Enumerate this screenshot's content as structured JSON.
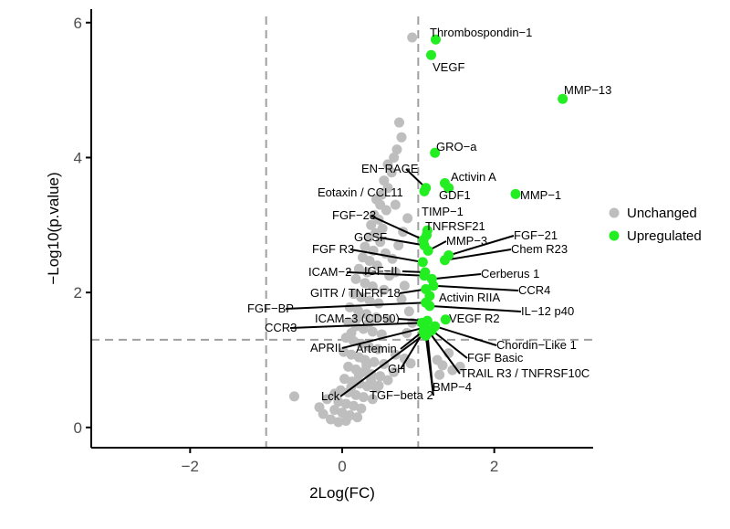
{
  "chart_data": {
    "type": "scatter",
    "xlabel": "2Log(FC)",
    "ylabel": "−Log10(p.value)",
    "xlim": [
      -3.3,
      3.3
    ],
    "ylim": [
      -0.3,
      6.2
    ],
    "x_ticks": [
      -2,
      0,
      2
    ],
    "y_ticks": [
      0,
      2,
      4,
      6
    ],
    "x_tick_labels": [
      "−2",
      "0",
      "2"
    ],
    "y_tick_labels": [
      "0",
      "2",
      "4",
      "6"
    ],
    "fc_thresholds": [
      -1,
      1
    ],
    "p_threshold": 1.3,
    "grid": false,
    "legend_position": "right",
    "legend": [
      {
        "label": "Unchanged",
        "color": "#bebebe"
      },
      {
        "label": "Upregulated",
        "color": "#22ee22"
      }
    ],
    "upregulated": [
      {
        "label": "Thrombospondin−1",
        "x": 1.23,
        "y": 5.75
      },
      {
        "label": "VEGF",
        "x": 1.17,
        "y": 5.52
      },
      {
        "label": "MMP−13",
        "x": 2.9,
        "y": 4.87
      },
      {
        "label": "GRO−a",
        "x": 1.22,
        "y": 4.07
      },
      {
        "label": "Activin A",
        "x": 1.35,
        "y": 3.62
      },
      {
        "label": "GDF1",
        "x": 1.4,
        "y": 3.55
      },
      {
        "label": "MMP−1",
        "x": 2.28,
        "y": 3.46
      },
      {
        "label": "EN−RAGE",
        "x": 1.1,
        "y": 3.55
      },
      {
        "label": "Eotaxin / CCL11",
        "x": 1.08,
        "y": 3.5
      },
      {
        "label": "TIMP−1",
        "x": 1.12,
        "y": 2.92
      },
      {
        "label": "TNFRSF21",
        "x": 1.11,
        "y": 2.85
      },
      {
        "label": "FGF−23",
        "x": 1.07,
        "y": 2.78
      },
      {
        "label": "GCSF",
        "x": 1.08,
        "y": 2.7
      },
      {
        "label": "MMP−3",
        "x": 1.13,
        "y": 2.62
      },
      {
        "label": "FGF−21",
        "x": 1.4,
        "y": 2.55
      },
      {
        "label": "Chem R23",
        "x": 1.35,
        "y": 2.48
      },
      {
        "label": "FGF R3",
        "x": 1.06,
        "y": 2.45
      },
      {
        "label": "IGF−II",
        "x": 1.09,
        "y": 2.3
      },
      {
        "label": "ICAM−2",
        "x": 1.08,
        "y": 2.25
      },
      {
        "label": "Cerberus 1",
        "x": 1.18,
        "y": 2.2
      },
      {
        "label": "CCR4",
        "x": 1.2,
        "y": 2.1
      },
      {
        "label": "GITR / TNFRF18",
        "x": 1.1,
        "y": 2.05
      },
      {
        "label": "Activin RIIA",
        "x": 1.15,
        "y": 1.95
      },
      {
        "label": "FGF−BP",
        "x": 1.1,
        "y": 1.85
      },
      {
        "label": "IL−12 p40",
        "x": 1.15,
        "y": 1.8
      },
      {
        "label": "VEGF R2",
        "x": 1.36,
        "y": 1.6
      },
      {
        "label": "ICAM−3 (CD50)",
        "x": 1.12,
        "y": 1.58
      },
      {
        "label": "CCR3",
        "x": 1.05,
        "y": 1.55
      },
      {
        "label": "Chordin−Like 1",
        "x": 1.22,
        "y": 1.5
      },
      {
        "label": "APRIL",
        "x": 1.08,
        "y": 1.48
      },
      {
        "label": "Artemin",
        "x": 1.1,
        "y": 1.46
      },
      {
        "label": "FGF Basic",
        "x": 1.18,
        "y": 1.44
      },
      {
        "label": "TRAIL R3 / TNFRSF10C",
        "x": 1.14,
        "y": 1.42
      },
      {
        "label": "GH",
        "x": 1.07,
        "y": 1.42
      },
      {
        "label": "BMP−4",
        "x": 1.12,
        "y": 1.4
      },
      {
        "label": "Lck",
        "x": 1.08,
        "y": 1.38
      },
      {
        "label": "TGF−beta 2",
        "x": 1.1,
        "y": 1.36
      }
    ],
    "unchanged": [
      [
        0.92,
        5.78
      ],
      [
        0.75,
        4.52
      ],
      [
        0.78,
        4.3
      ],
      [
        0.72,
        4.12
      ],
      [
        0.68,
        4.0
      ],
      [
        0.6,
        3.9
      ],
      [
        0.65,
        3.78
      ],
      [
        0.55,
        3.66
      ],
      [
        0.6,
        3.55
      ],
      [
        0.52,
        3.45
      ],
      [
        0.45,
        3.38
      ],
      [
        0.5,
        3.3
      ],
      [
        0.58,
        3.22
      ],
      [
        0.42,
        3.15
      ],
      [
        0.48,
        3.08
      ],
      [
        0.38,
        3.0
      ],
      [
        0.53,
        2.95
      ],
      [
        0.44,
        2.88
      ],
      [
        0.35,
        2.82
      ],
      [
        0.5,
        2.75
      ],
      [
        0.3,
        2.68
      ],
      [
        0.41,
        2.62
      ],
      [
        0.57,
        2.58
      ],
      [
        0.27,
        2.52
      ],
      [
        0.36,
        2.47
      ],
      [
        0.46,
        2.4
      ],
      [
        0.22,
        2.35
      ],
      [
        0.33,
        2.3
      ],
      [
        0.62,
        2.25
      ],
      [
        0.18,
        2.2
      ],
      [
        0.3,
        2.14
      ],
      [
        0.4,
        2.09
      ],
      [
        0.55,
        2.04
      ],
      [
        0.15,
        1.98
      ],
      [
        0.25,
        1.93
      ],
      [
        0.36,
        1.88
      ],
      [
        0.48,
        1.84
      ],
      [
        0.1,
        1.78
      ],
      [
        0.21,
        1.73
      ],
      [
        0.32,
        1.68
      ],
      [
        0.45,
        1.63
      ],
      [
        0.6,
        1.6
      ],
      [
        0.08,
        1.56
      ],
      [
        0.18,
        1.5
      ],
      [
        0.28,
        1.46
      ],
      [
        0.4,
        1.42
      ],
      [
        0.52,
        1.38
      ],
      [
        0.05,
        1.33
      ],
      [
        0.15,
        1.28
      ],
      [
        0.25,
        1.24
      ],
      [
        0.35,
        1.2
      ],
      [
        0.47,
        1.16
      ],
      [
        0.02,
        1.12
      ],
      [
        0.12,
        1.08
      ],
      [
        0.22,
        1.04
      ],
      [
        0.3,
        1.0
      ],
      [
        0.42,
        0.97
      ],
      [
        0.55,
        0.94
      ],
      [
        0.08,
        0.9
      ],
      [
        0.18,
        0.86
      ],
      [
        0.28,
        0.82
      ],
      [
        0.38,
        0.79
      ],
      [
        0.5,
        0.76
      ],
      [
        0.03,
        0.72
      ],
      [
        0.13,
        0.68
      ],
      [
        0.23,
        0.65
      ],
      [
        0.33,
        0.61
      ],
      [
        0.45,
        0.58
      ],
      [
        -0.02,
        0.55
      ],
      [
        0.08,
        0.52
      ],
      [
        0.18,
        0.48
      ],
      [
        0.28,
        0.45
      ],
      [
        0.4,
        0.42
      ],
      [
        -0.05,
        0.38
      ],
      [
        0.05,
        0.35
      ],
      [
        0.15,
        0.32
      ],
      [
        0.25,
        0.28
      ],
      [
        -0.1,
        0.26
      ],
      [
        0.0,
        0.22
      ],
      [
        0.1,
        0.18
      ],
      [
        0.2,
        0.15
      ],
      [
        -0.25,
        0.2
      ],
      [
        -0.15,
        0.12
      ],
      [
        -0.05,
        0.08
      ],
      [
        0.05,
        0.1
      ],
      [
        -0.3,
        0.3
      ],
      [
        -0.2,
        0.42
      ],
      [
        -0.1,
        0.5
      ],
      [
        0.12,
        0.6
      ],
      [
        0.22,
        0.78
      ],
      [
        0.32,
        0.92
      ],
      [
        -0.63,
        0.46
      ],
      [
        0.7,
        1.08
      ],
      [
        0.82,
        1.02
      ],
      [
        0.9,
        0.95
      ],
      [
        1.25,
        1.0
      ],
      [
        1.32,
        0.92
      ],
      [
        1.45,
        0.85
      ],
      [
        1.55,
        0.9
      ],
      [
        1.28,
        0.78
      ],
      [
        1.4,
        1.1
      ],
      [
        0.85,
        1.4
      ],
      [
        0.92,
        1.55
      ],
      [
        0.88,
        1.72
      ],
      [
        0.78,
        1.9
      ],
      [
        0.82,
        2.1
      ],
      [
        0.7,
        2.3
      ],
      [
        0.66,
        2.5
      ],
      [
        0.74,
        2.7
      ],
      [
        0.8,
        2.9
      ],
      [
        0.86,
        3.1
      ],
      [
        0.7,
        3.3
      ],
      [
        0.35,
        1.55
      ],
      [
        0.2,
        1.62
      ],
      [
        0.12,
        1.4
      ],
      [
        0.38,
        0.7
      ],
      [
        0.48,
        0.62
      ],
      [
        0.6,
        0.7
      ],
      [
        0.68,
        0.82
      ]
    ]
  }
}
